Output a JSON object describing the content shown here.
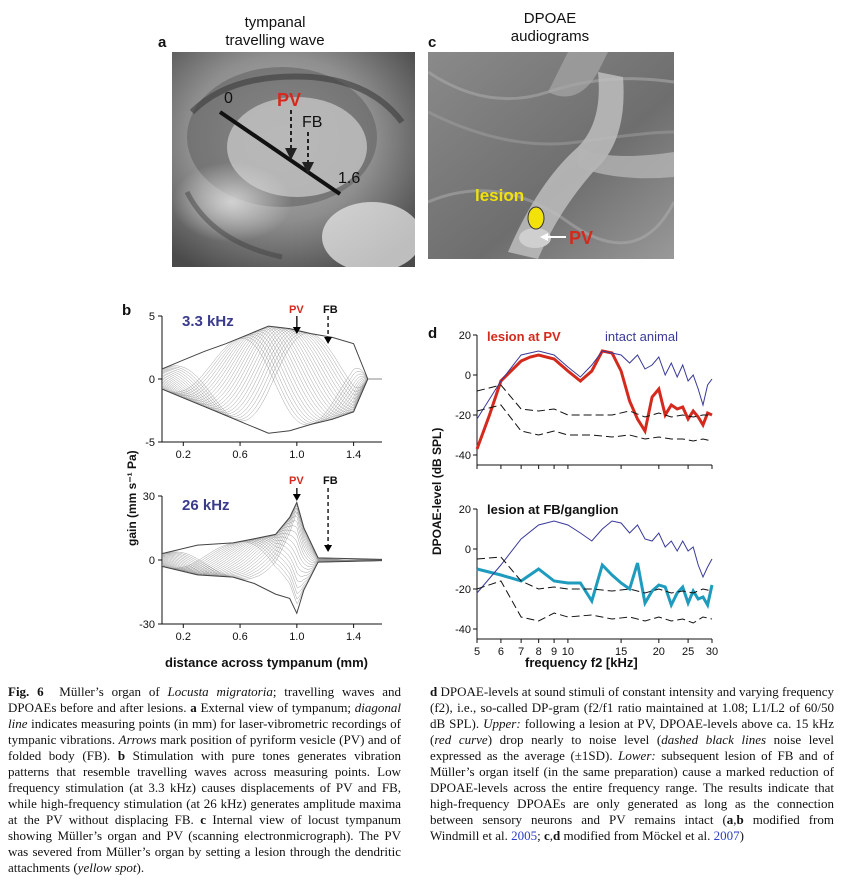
{
  "panel_a": {
    "letter": "a",
    "header_line1": "tympanal",
    "header_line2": "travelling wave",
    "label_start": "0",
    "label_end": "1.6",
    "label_pv": "PV",
    "label_fb": "FB"
  },
  "panel_c": {
    "letter": "c",
    "header_line1": "DPOAE",
    "header_line2": "audiograms",
    "label_lesion": "lesion",
    "label_pv": "PV"
  },
  "panel_b": {
    "letter": "b",
    "top_freq": "3.3 kHz",
    "bottom_freq": "26 kHz",
    "marker_pv": "PV",
    "marker_fb": "FB",
    "ylabel": "gain (mm s⁻¹ Pa)",
    "xlabel": "distance across tympanum (mm)"
  },
  "panel_d": {
    "letter": "d",
    "upper_legend_red": "lesion at PV",
    "upper_legend_blue": "intact animal",
    "lower_legend": "lesion at FB/ganglion",
    "ylabel": "DPOAE-level  (dB SPL)",
    "xlabel": "frequency f2 [kHz]"
  },
  "colors": {
    "red": "#d42a1e",
    "blue": "#3a3a9a",
    "teal": "#1e9bbd",
    "yellow": "#f2e20a",
    "navy": "#3b3b8c"
  },
  "chart_data": [
    {
      "type": "line",
      "id": "b-upper-3.3kHz",
      "xlabel": "distance across tympanum (mm)",
      "ylabel": "gain (mm s-1 Pa)",
      "xlim": [
        0.05,
        1.6
      ],
      "ylim": [
        -5,
        5
      ],
      "xticks": [
        "0.2",
        "0.6",
        "1.0",
        "1.4"
      ],
      "yticks": [
        "5",
        "0",
        "-5"
      ],
      "series": [
        {
          "x": [
            0.05,
            0.2,
            0.35,
            0.5,
            0.65,
            0.8,
            0.95,
            1.1,
            1.25,
            1.4,
            1.5
          ],
          "values": [
            0.8,
            1.5,
            2.2,
            2.8,
            3.5,
            4.2,
            4.0,
            3.6,
            3.3,
            2.8,
            0.0
          ]
        },
        {
          "x": [
            0.05,
            0.2,
            0.35,
            0.5,
            0.65,
            0.8,
            0.95,
            1.1,
            1.25,
            1.4,
            1.5
          ],
          "values": [
            -0.8,
            -1.5,
            -2.2,
            -2.9,
            -3.6,
            -4.3,
            -4.1,
            -3.6,
            -3.2,
            -2.6,
            0.0
          ]
        }
      ]
    },
    {
      "type": "line",
      "id": "b-lower-26kHz",
      "xlabel": "distance across tympanum (mm)",
      "ylabel": "gain (mm s-1 Pa)",
      "xlim": [
        0.05,
        1.6
      ],
      "ylim": [
        -30,
        30
      ],
      "xticks": [
        "0.2",
        "0.6",
        "1.0",
        "1.4"
      ],
      "yticks": [
        "30",
        "0",
        "-30"
      ],
      "series": [
        {
          "x": [
            0.05,
            0.3,
            0.55,
            0.7,
            0.85,
            0.95,
            1.0,
            1.05,
            1.15,
            1.6
          ],
          "values": [
            3,
            7,
            8,
            10,
            12,
            20,
            27,
            15,
            1,
            0.3
          ]
        },
        {
          "x": [
            0.05,
            0.3,
            0.55,
            0.7,
            0.85,
            0.95,
            1.0,
            1.05,
            1.15,
            1.6
          ],
          "values": [
            -3,
            -7,
            -8,
            -11,
            -16,
            -18,
            -25,
            -14,
            -1,
            -0.3
          ]
        }
      ]
    },
    {
      "type": "line",
      "id": "d-upper",
      "xlabel": "frequency f2 [kHz]",
      "ylabel": "DPOAE-level  (dB SPL)",
      "xlim": [
        5,
        30
      ],
      "ylim": [
        -45,
        20
      ],
      "xticks": [
        "5",
        "6",
        "7",
        "8",
        "9",
        "10",
        "15",
        "20",
        "25",
        "30"
      ],
      "yticks": [
        "20",
        "0",
        "-20",
        "-40"
      ],
      "series": [
        {
          "name": "lesion at PV",
          "x": [
            5,
            5.5,
            6,
            7,
            7.5,
            8,
            9,
            10,
            11,
            12,
            13,
            14,
            15,
            16,
            17,
            18,
            19,
            20,
            21,
            22,
            23,
            24,
            25,
            26,
            27,
            28,
            29,
            30
          ],
          "values": [
            -37,
            -20,
            -3,
            7,
            9,
            10,
            8,
            2,
            -3,
            2,
            12,
            11,
            2,
            -13,
            -22,
            -28,
            -11,
            -7,
            -20,
            -15,
            -17,
            -16,
            -22,
            -18,
            -21,
            -25,
            -19,
            -20
          ]
        },
        {
          "name": "intact animal",
          "x": [
            5,
            6,
            7,
            8,
            9,
            10,
            11,
            12,
            13,
            14,
            15,
            16,
            17,
            18,
            19,
            20,
            21,
            22,
            23,
            24,
            25,
            26,
            27,
            28,
            29,
            30
          ],
          "values": [
            -22,
            -3,
            10,
            12,
            10,
            4,
            -1,
            5,
            12,
            11,
            10,
            6,
            10,
            3,
            5,
            9,
            0,
            6,
            -1,
            5,
            -3,
            0,
            -7,
            -15,
            -5,
            -2
          ]
        },
        {
          "name": "noise average",
          "x": [
            5,
            6,
            7,
            8,
            9,
            10,
            12,
            14,
            16,
            18,
            20,
            22,
            24,
            26,
            28,
            30
          ],
          "values": [
            -8,
            -5,
            -17,
            -18,
            -17,
            -20,
            -20,
            -20,
            -18,
            -21,
            -19,
            -21,
            -20,
            -21,
            -20,
            -20
          ]
        },
        {
          "name": "noise -1SD",
          "x": [
            5,
            6,
            7,
            8,
            9,
            10,
            12,
            14,
            16,
            18,
            20,
            22,
            24,
            26,
            28,
            30
          ],
          "values": [
            -18,
            -15,
            -28,
            -30,
            -28,
            -30,
            -30,
            -31,
            -30,
            -32,
            -31,
            -32,
            -32,
            -33,
            -32,
            -33
          ]
        }
      ]
    },
    {
      "type": "line",
      "id": "d-lower",
      "xlabel": "frequency f2 [kHz]",
      "ylabel": "DPOAE-level  (dB SPL)",
      "xlim": [
        5,
        30
      ],
      "ylim": [
        -45,
        20
      ],
      "xticks": [
        "5",
        "6",
        "7",
        "8",
        "9",
        "10",
        "15",
        "20",
        "25",
        "30"
      ],
      "yticks": [
        "20",
        "0",
        "-20",
        "-40"
      ],
      "series": [
        {
          "name": "lesion at FB/ganglion",
          "x": [
            5,
            6,
            7,
            8,
            9,
            10,
            11,
            12,
            13,
            14,
            15,
            16,
            17,
            18,
            19,
            20,
            21,
            22,
            23,
            24,
            25,
            26,
            27,
            28,
            29,
            30
          ],
          "values": [
            -10,
            -13,
            -16,
            -10,
            -16,
            -17,
            -17,
            -26,
            -8,
            -13,
            -17,
            -20,
            -7,
            -27,
            -21,
            -18,
            -19,
            -28,
            -22,
            -19,
            -27,
            -21,
            -25,
            -24,
            -28,
            -18
          ]
        },
        {
          "name": "intact animal",
          "x": [
            5,
            6,
            7,
            8,
            9,
            10,
            11,
            12,
            13,
            14,
            15,
            16,
            17,
            18,
            19,
            20,
            21,
            22,
            23,
            24,
            25,
            26,
            27,
            28,
            29,
            30
          ],
          "values": [
            -22,
            -8,
            5,
            12,
            14,
            12,
            8,
            4,
            10,
            14,
            13,
            8,
            12,
            5,
            4,
            8,
            1,
            4,
            -1,
            4,
            -1,
            1,
            -8,
            -14,
            -9,
            -5
          ]
        },
        {
          "name": "noise average",
          "x": [
            5,
            6,
            7,
            8,
            9,
            10,
            12,
            14,
            16,
            18,
            20,
            22,
            24,
            26,
            28,
            30
          ],
          "values": [
            -5,
            -4,
            -16,
            -20,
            -19,
            -20,
            -20,
            -21,
            -20,
            -22,
            -20,
            -22,
            -21,
            -22,
            -20,
            -21
          ]
        },
        {
          "name": "noise -1SD",
          "x": [
            5,
            6,
            7,
            8,
            9,
            10,
            12,
            14,
            16,
            18,
            20,
            22,
            24,
            26,
            28,
            30
          ],
          "values": [
            -20,
            -16,
            -34,
            -36,
            -32,
            -34,
            -33,
            -35,
            -34,
            -36,
            -34,
            -36,
            -35,
            -37,
            -34,
            -35
          ]
        }
      ]
    }
  ],
  "caption_left": {
    "fig": "Fig. 6",
    "text_1": "Müller’s organ of",
    "species": "Locusta migratoria",
    "text_2": "; travelling waves and DPOAEs before and after lesions.",
    "a_bold": "a",
    "text_3": "External view of tympanum;",
    "diag": "diagonal line",
    "text_4": "indicates measuring points (in mm) for laser-vibrometric recordings of tympanic vibrations.",
    "arrows": "Arrows",
    "text_5": "mark position of pyriform vesicle (PV) and of folded body (FB).",
    "b_bold": "b",
    "text_6": "Stimulation with pure tones generates vibration patterns that resemble travelling waves across measuring points. Low frequency stimulation (at 3.3 kHz) causes displacements of PV and FB, while high-frequency stimulation (at 26 kHz) generates amplitude maxima at the PV without displacing FB.",
    "c_bold": "c",
    "text_7": "Internal view of locust tympanum showing Müller’s organ and PV (scanning electronmicrograph). The PV was severed from Müller’s organ by setting a lesion through the dendritic attachments (",
    "yellow": "yellow spot",
    "text_8": ")."
  },
  "caption_right": {
    "d_bold": "d",
    "text_1": "DPOAE-levels at sound stimuli of constant intensity and varying frequency (f2), i.e., so-called DP-gram (f2/f1 ratio maintained at 1.08; L1/L2 of 60/50 dB SPL).",
    "upper": "Upper:",
    "text_2": "following a lesion at PV, DPOAE-levels above ca. 15 kHz (",
    "red_curve": "red curve",
    "text_3": ") drop nearly to noise level (",
    "dashed": "dashed black lines",
    "text_4": "noise level expressed as the average (±1SD).",
    "lower": "Lower:",
    "text_5": "subsequent lesion of FB and of Müller’s organ itself (in the same preparation) cause a marked reduction of DPOAE-levels across the entire frequency range. The results indicate that high-frequency DPOAEs are only generated as long as the connection between sensory neurons and PV remains intact (",
    "ab": "a",
    "comma_b": ",",
    "b": "b",
    "text_6": "modified from Windmill et al.",
    "y2005": "2005",
    "semi": ";",
    "cd": "c",
    "comma_d": ",",
    "d": "d",
    "text_7": "modified from Möckel et al.",
    "y2007": "2007",
    "close": ")"
  }
}
